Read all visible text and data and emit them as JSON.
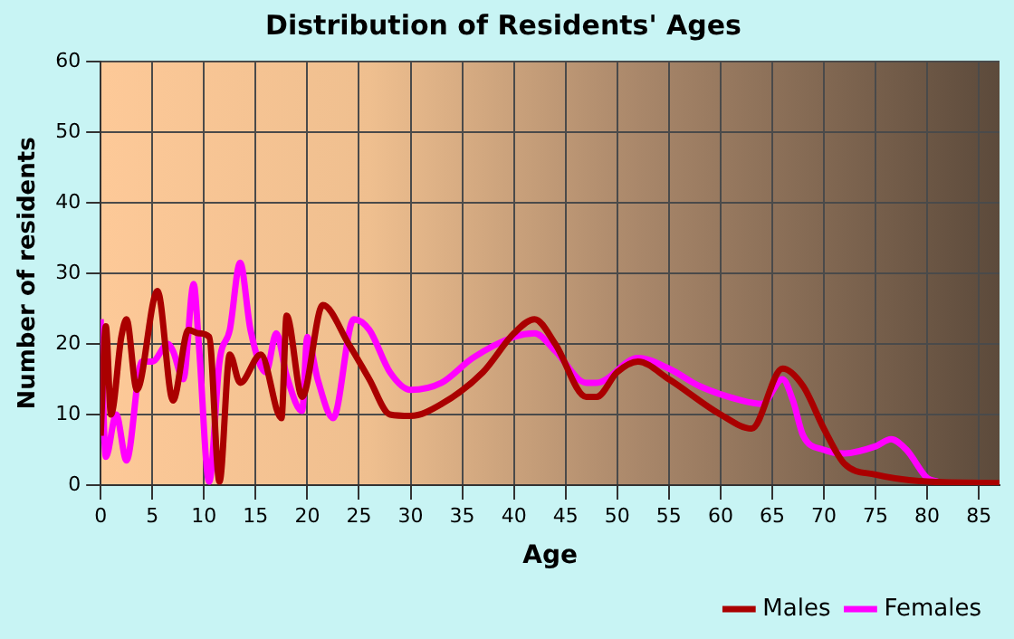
{
  "chart_data": {
    "type": "line",
    "title": "Distribution of Residents' Ages",
    "xlabel": "Age",
    "ylabel": "Number of residents",
    "xlim": [
      0,
      87
    ],
    "xticks": [
      0,
      5,
      10,
      15,
      20,
      25,
      30,
      35,
      40,
      45,
      50,
      55,
      60,
      65,
      70,
      75,
      80,
      85
    ],
    "ylim": [
      0,
      60
    ],
    "yticks": [
      0,
      10,
      20,
      30,
      40,
      50,
      60
    ],
    "grid": true,
    "legend": "bottom right",
    "marker": "none",
    "series": [
      {
        "name": "Males",
        "color": "#aa0000",
        "x": [
          0,
          0.5,
          1,
          2,
          2.5,
          3.5,
          5.5,
          7,
          8.5,
          9.5,
          10.5,
          11.5,
          12.5,
          13.5,
          15.5,
          17.5,
          18,
          19.5,
          21.5,
          24,
          26,
          28,
          30,
          33,
          37,
          40,
          42,
          44,
          47,
          48,
          50,
          52,
          55,
          60,
          63,
          66,
          68,
          70,
          72,
          75,
          80,
          87
        ],
        "values": [
          7,
          22.5,
          10,
          21,
          23.5,
          13.5,
          27.5,
          12,
          22,
          21.5,
          21,
          0.5,
          18.5,
          14.5,
          18.5,
          9.5,
          24,
          12.5,
          25.5,
          20,
          15,
          10,
          9.8,
          11.5,
          16,
          21.5,
          23.5,
          20,
          12.5,
          12.5,
          16,
          17.5,
          15,
          10,
          8,
          16.5,
          14,
          8,
          3,
          1.5,
          0.5,
          0.3
        ]
      },
      {
        "name": "Females",
        "color": "#ff00ff",
        "x": [
          0,
          0.5,
          1.5,
          2.5,
          4,
          5,
          6.5,
          7,
          8,
          9,
          9.5,
          10.5,
          11.5,
          12.5,
          13.5,
          14.5,
          16,
          17,
          18,
          19.5,
          20,
          21,
          22.5,
          24.5,
          26,
          28,
          30,
          33,
          36,
          40,
          42,
          44,
          47,
          48,
          52,
          55,
          58,
          62,
          64,
          66,
          67,
          68,
          70,
          72,
          75,
          76.5,
          78,
          80,
          81
        ],
        "values": [
          23.5,
          4,
          10,
          3.5,
          17.5,
          17.5,
          20,
          19,
          15,
          28.5,
          20,
          0.5,
          17.5,
          22,
          31.5,
          22,
          16,
          21.5,
          15.5,
          10.5,
          21,
          15,
          9.5,
          23.5,
          22,
          16,
          13.5,
          14.5,
          18,
          21,
          21.5,
          19,
          14.5,
          14.5,
          18,
          16.5,
          14,
          12,
          11.5,
          15,
          12,
          7,
          5,
          4.5,
          5.5,
          6.5,
          5,
          1,
          0.5
        ]
      }
    ]
  }
}
